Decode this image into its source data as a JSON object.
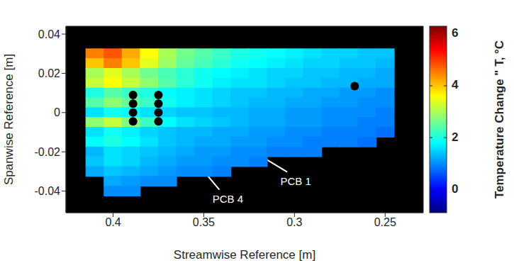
{
  "chart_data": {
    "type": "heatmap",
    "xlabel": "Streamwise Reference [m]",
    "ylabel": "Spanwise Reference [m]",
    "xlim": [
      0.426,
      0.229
    ],
    "xticks": [
      0.4,
      0.35,
      0.3,
      0.25
    ],
    "ylim": [
      -0.051,
      0.044
    ],
    "yticks": [
      -0.04,
      -0.02,
      0,
      0.02,
      0.04
    ],
    "grid": false,
    "x": [
      0.41,
      0.4,
      0.39,
      0.38,
      0.37,
      0.36,
      0.35,
      0.34,
      0.33,
      0.32,
      0.31,
      0.3,
      0.29,
      0.28,
      0.27,
      0.26,
      0.25
    ],
    "y": [
      0.03,
      0.025,
      0.02,
      0.015,
      0.01,
      0.005,
      0,
      -0.005,
      -0.01,
      -0.015,
      -0.02,
      -0.025,
      -0.03,
      -0.035,
      -0.04
    ],
    "cells": [
      [
        4.5,
        4.8,
        4.2,
        3.6,
        3,
        2.6,
        2.4,
        2.2,
        2,
        1.9,
        1.8,
        1.7,
        1.6,
        1.5,
        1.5,
        1.4,
        1.4
      ],
      [
        4,
        4.5,
        4,
        3.4,
        2.9,
        2.5,
        2.3,
        2.1,
        1.9,
        1.8,
        1.7,
        1.6,
        1.5,
        1.5,
        1.4,
        1.4,
        1.3
      ],
      [
        3,
        3.4,
        3,
        2.6,
        2.3,
        2.1,
        1.9,
        1.8,
        1.7,
        1.6,
        1.5,
        1.5,
        1.4,
        1.4,
        1.3,
        1.3,
        1.2
      ],
      [
        3.2,
        3.6,
        3.2,
        2.8,
        2.4,
        2.1,
        1.9,
        1.7,
        1.6,
        1.6,
        1.5,
        1.4,
        1.4,
        1.3,
        1.3,
        1.2,
        1.2
      ],
      [
        2,
        2.4,
        2.2,
        2,
        1.8,
        1.7,
        1.6,
        1.5,
        1.4,
        1.4,
        1.3,
        1.3,
        1.2,
        1.2,
        1.1,
        1.1,
        1
      ],
      [
        2.4,
        2.8,
        2.5,
        2.2,
        1.9,
        1.7,
        1.6,
        1.5,
        1.4,
        1.3,
        1.3,
        1.2,
        1.2,
        1.1,
        1.1,
        1,
        1
      ],
      [
        1.6,
        1.9,
        1.8,
        1.6,
        1.5,
        1.4,
        1.4,
        1.3,
        1.3,
        1.2,
        1.2,
        1.1,
        1.1,
        1,
        1,
        1,
        0.9
      ],
      [
        2.8,
        3.2,
        2.7,
        2.2,
        1.8,
        1.6,
        1.5,
        1.4,
        1.3,
        1.2,
        1.2,
        1.1,
        1.1,
        1,
        1,
        0.9,
        0.9
      ],
      [
        1.6,
        1.9,
        1.7,
        1.5,
        1.4,
        1.3,
        1.3,
        1.2,
        1.2,
        1.1,
        1.1,
        1,
        1,
        0.9,
        0.9,
        0.9,
        0.8
      ],
      [
        1.8,
        2,
        1.8,
        1.6,
        1.4,
        1.3,
        1.2,
        1.2,
        1.1,
        1.1,
        1,
        1,
        0.9,
        0.9,
        0.9,
        0.8,
        null
      ],
      [
        1.3,
        1.6,
        1.5,
        1.4,
        1.3,
        1.2,
        1.1,
        1.1,
        1,
        1,
        0.9,
        0.9,
        0.9,
        null,
        null,
        null,
        null
      ],
      [
        1.4,
        1.6,
        1.5,
        1.3,
        1.2,
        1.1,
        1.1,
        1,
        1,
        0.9,
        null,
        null,
        null,
        null,
        null,
        null,
        null
      ],
      [
        1.2,
        1.4,
        1.3,
        1.2,
        1.1,
        1,
        1,
        0.9,
        null,
        null,
        null,
        null,
        null,
        null,
        null,
        null,
        null
      ],
      [
        null,
        1.2,
        1.1,
        1,
        1,
        null,
        null,
        null,
        null,
        null,
        null,
        null,
        null,
        null,
        null,
        null,
        null
      ],
      [
        null,
        1,
        1,
        null,
        null,
        null,
        null,
        null,
        null,
        null,
        null,
        null,
        null,
        null,
        null,
        null,
        null
      ]
    ],
    "colorbar": {
      "label": "Temperature Change \" T, °C",
      "lim": [
        -0.9,
        6.3
      ],
      "ticks": [
        0,
        2,
        4,
        6
      ]
    },
    "points": {
      "x": [
        0.389,
        0.389,
        0.389,
        0.389,
        0.375,
        0.375,
        0.375,
        0.375,
        0.2668
      ],
      "y": [
        0.009,
        0.0045,
        0,
        -0.0045,
        0.009,
        0.0045,
        0,
        -0.0045,
        0.0135
      ],
      "color": "#000000"
    },
    "annotations": [
      {
        "text": "PCB 1",
        "xy": [
          0.3746,
          0.0091
        ],
        "xytext": [
          0.304,
          -0.0303
        ]
      },
      {
        "text": "PCB 4",
        "xy": [
          0.3734,
          -0.0041
        ],
        "xytext": [
          0.3414,
          -0.0393
        ]
      }
    ]
  }
}
